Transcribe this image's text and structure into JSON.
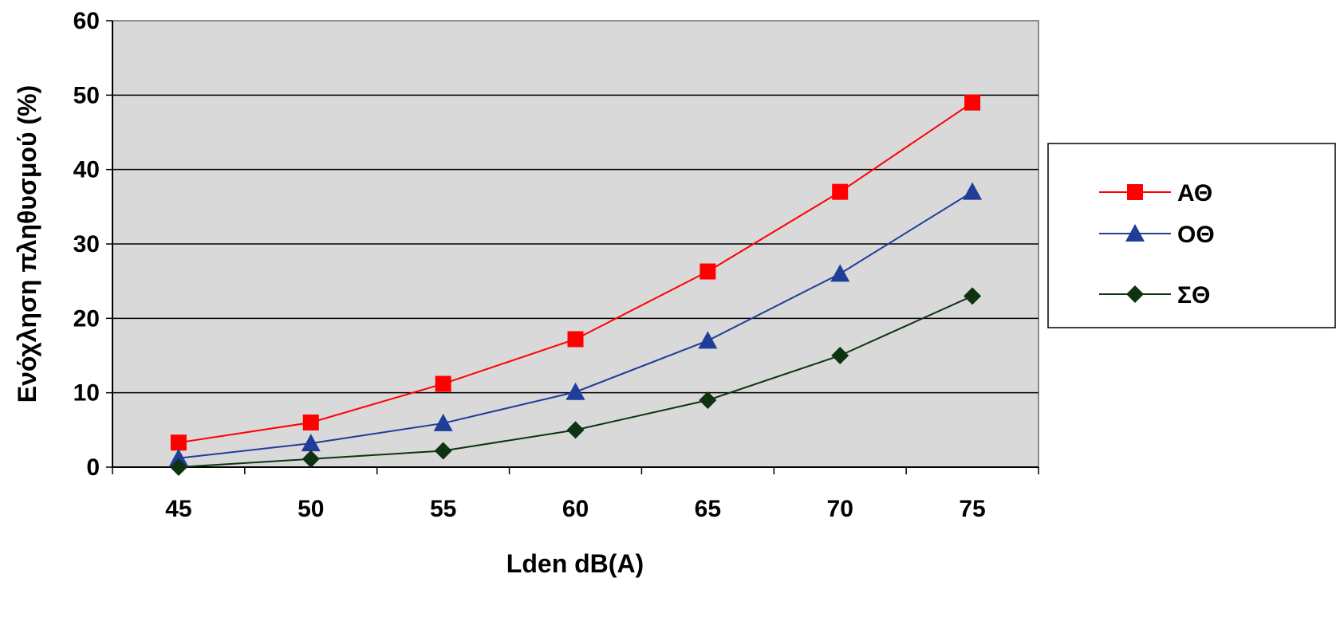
{
  "chart_data": {
    "type": "line",
    "x": [
      45,
      50,
      55,
      60,
      65,
      70,
      75
    ],
    "series": [
      {
        "name": "ΑΘ",
        "values": [
          3.3,
          6,
          11.2,
          17.2,
          26.3,
          37,
          49
        ],
        "color": "#ff0000",
        "marker": "square"
      },
      {
        "name": "ΟΘ",
        "values": [
          1.2,
          3.2,
          5.9,
          10.1,
          17,
          26,
          37
        ],
        "color": "#1f3d99",
        "marker": "triangle"
      },
      {
        "name": "ΣΘ",
        "values": [
          0,
          1.1,
          2.2,
          5,
          9,
          15,
          23
        ],
        "color": "#0d3310",
        "marker": "diamond"
      }
    ],
    "xlabel": "Lden dB(A)",
    "ylabel": "Ενόχληση πληθυσμού (%)",
    "ylim": [
      0,
      60
    ],
    "yticks": [
      "0",
      "10",
      "20",
      "30",
      "40",
      "50",
      "60"
    ],
    "xticks": [
      "45",
      "50",
      "55",
      "60",
      "65",
      "70",
      "75"
    ],
    "grid": true,
    "legend_position": "right",
    "plot_background": "#d9d9d9"
  }
}
